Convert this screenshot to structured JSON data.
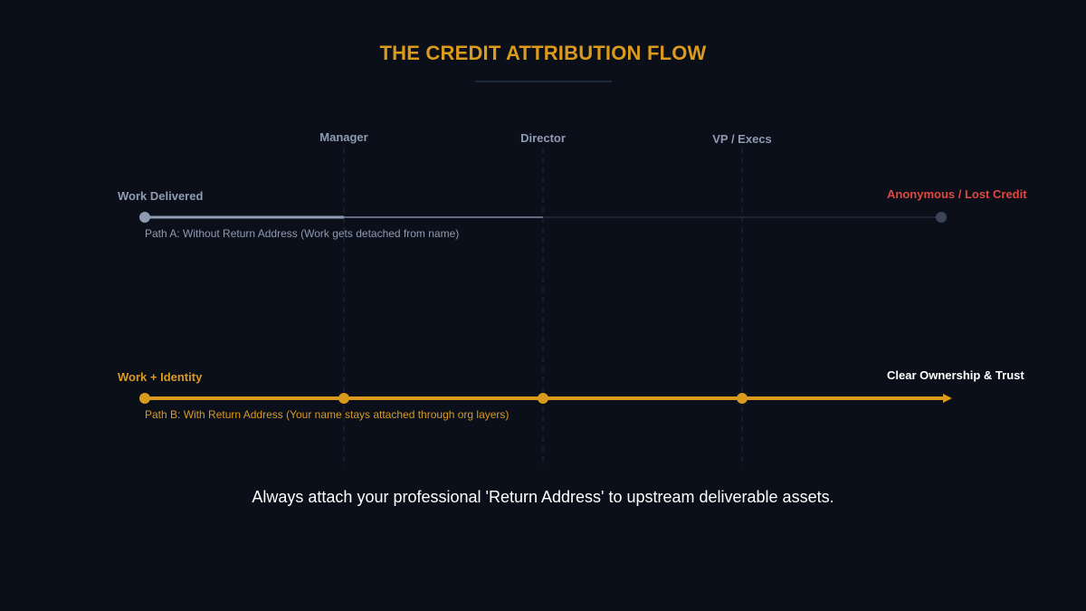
{
  "title": "THE CREDIT ATTRIBUTION FLOW",
  "stages": [
    "Manager",
    "Director",
    "VP / Execs"
  ],
  "path_a": {
    "start_label": "Work Delivered",
    "end_label": "Anonymous / Lost Credit",
    "caption": "Path A: Without Return Address (Work gets detached from name)"
  },
  "path_b": {
    "start_label": "Work + Identity",
    "end_label": "Clear Ownership & Trust",
    "caption": "Path B: With Return Address (Your name stays attached through org layers)"
  },
  "footer": "Always attach your professional 'Return Address' to upstream deliverable assets.",
  "colors": {
    "background": "#0b0f19",
    "accent": "#d99a1e",
    "muted": "#8f9bb3",
    "lost": "#e0483f",
    "divider": "#1f2a3d"
  }
}
